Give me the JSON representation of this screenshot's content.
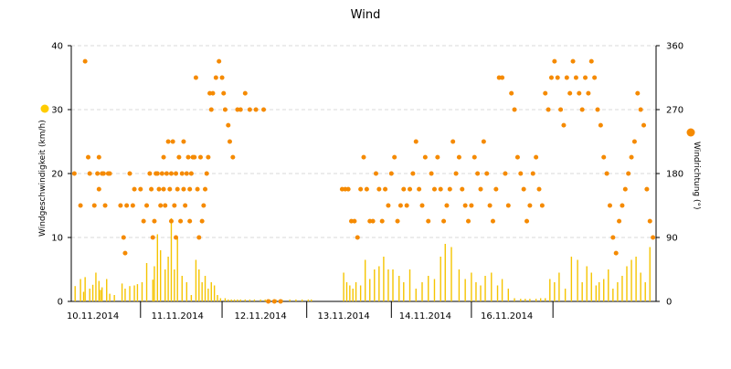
{
  "chart_data": {
    "type": "bar+scatter",
    "title": "Wind",
    "y_left_label": "Windgeschwindigkeit (km/h)",
    "y_right_label": "Windrichtung (°)",
    "y_left_ticks": [
      0,
      10,
      20,
      30,
      40
    ],
    "y_right_ticks": [
      0,
      90,
      180,
      270,
      360
    ],
    "y_left_range": [
      0,
      40
    ],
    "y_right_range": [
      0,
      360
    ],
    "x_tick_labels": [
      "10.11.2014",
      "11.11.2014",
      "12.11.2014",
      "13.11.2014",
      "14.11.2014",
      "16.11.2014"
    ],
    "grid": true,
    "colors": {
      "speed": "#f5c400",
      "direction": "#f58a00",
      "legend_speed": "#ffcc00",
      "legend_direction": "#f58a00",
      "grid": "#d9d9d9"
    },
    "series": [
      {
        "name": "Windgeschwindigkeit (km/h)",
        "kind": "bar",
        "x": [
          0.25,
          0.6,
          0.8,
          0.9,
          1.2,
          1.4,
          1.6,
          1.8,
          1.9,
          2.0,
          2.3,
          2.5,
          2.8,
          3.3,
          3.5,
          3.8,
          4.1,
          4.3,
          4.6,
          4.9,
          5.3,
          5.4,
          5.6,
          5.8,
          6.1,
          6.3,
          6.5,
          6.7,
          6.9,
          7.2,
          7.5,
          7.8,
          8.1,
          8.3,
          8.5,
          8.7,
          8.9,
          9.1,
          9.3,
          9.5,
          9.7,
          10.0,
          10.2,
          10.4,
          10.6,
          10.8,
          11.0,
          11.3,
          11.6,
          11.9,
          12.3,
          12.6,
          12.9,
          13.3,
          13.7,
          14.2,
          14.6,
          15.0,
          15.4,
          15.6,
          17.7,
          17.9,
          18.1,
          18.3,
          18.5,
          18.8,
          19.1,
          19.4,
          19.7,
          20.0,
          20.3,
          20.6,
          20.9,
          21.3,
          21.6,
          22.0,
          22.4,
          22.8,
          23.2,
          23.6,
          24.0,
          24.3,
          24.7,
          25.2,
          25.6,
          26.0,
          26.3,
          26.6,
          26.9,
          27.3,
          27.7,
          28.0,
          28.4,
          28.8,
          29.2,
          29.5,
          29.8,
          30.2,
          30.5,
          30.8,
          31.1,
          31.4,
          31.7,
          32.1,
          32.5,
          32.9,
          33.2,
          33.5,
          33.8,
          34.1,
          34.3,
          34.6,
          34.9,
          35.2,
          35.5,
          35.8,
          36.1,
          36.4,
          36.7,
          37.0,
          37.3,
          37.6
        ],
        "values": [
          2.4,
          3.5,
          1.5,
          3.8,
          2.0,
          2.6,
          4.5,
          3.2,
          1.8,
          2.2,
          3.5,
          1.2,
          1.0,
          2.8,
          2.0,
          2.4,
          2.5,
          2.7,
          3.0,
          6.0,
          3.4,
          5.5,
          10.5,
          8.0,
          5.0,
          7.0,
          13.0,
          5.0,
          10.0,
          4.0,
          3.0,
          1.0,
          6.5,
          5.0,
          3.0,
          4.0,
          2.0,
          3.0,
          2.5,
          1.0,
          0.5,
          0.5,
          0.3,
          0.3,
          0.3,
          0.3,
          0.3,
          0.3,
          0.3,
          0.3,
          0.3,
          0.3,
          0.3,
          0.3,
          0.3,
          0.3,
          0.3,
          0.3,
          0.3,
          0.3,
          4.5,
          3.0,
          2.5,
          2.0,
          3.0,
          2.5,
          6.5,
          3.5,
          5.0,
          5.5,
          7.0,
          5.0,
          5.0,
          4.0,
          3.0,
          5.0,
          2.0,
          3.0,
          4.0,
          3.5,
          7.0,
          9.0,
          8.5,
          5.0,
          3.5,
          4.5,
          3.0,
          2.5,
          4.0,
          4.5,
          2.5,
          3.5,
          2.0,
          0.5,
          0.4,
          0.4,
          0.4,
          0.4,
          0.5,
          0.5,
          3.5,
          3.0,
          4.5,
          2.0,
          7.0,
          6.5,
          3.0,
          5.5,
          4.5,
          2.5,
          3.0,
          3.5,
          5.0,
          2.0,
          3.0,
          4.0,
          5.5,
          6.5,
          7.0,
          4.5,
          3.0,
          8.5
        ]
      },
      {
        "name": "Windrichtung (°)",
        "kind": "scatter",
        "x": [
          0.2,
          0.6,
          0.9,
          1.1,
          1.2,
          1.5,
          1.7,
          1.8,
          1.8,
          2.0,
          2.1,
          2.2,
          2.4,
          2.5,
          3.2,
          3.4,
          3.5,
          3.6,
          3.8,
          4.0,
          4.1,
          4.5,
          4.7,
          4.9,
          5.1,
          5.2,
          5.3,
          5.4,
          5.5,
          5.6,
          5.7,
          5.8,
          5.9,
          6.0,
          6.0,
          6.1,
          6.2,
          6.3,
          6.4,
          6.5,
          6.5,
          6.6,
          6.7,
          6.8,
          6.8,
          6.9,
          7.0,
          7.1,
          7.2,
          7.3,
          7.3,
          7.4,
          7.5,
          7.6,
          7.7,
          7.7,
          7.8,
          7.9,
          8.0,
          8.1,
          8.2,
          8.3,
          8.4,
          8.5,
          8.6,
          8.7,
          8.8,
          8.9,
          9.0,
          9.1,
          9.2,
          9.4,
          9.6,
          9.8,
          9.9,
          10.0,
          10.2,
          10.3,
          10.5,
          10.8,
          11.0,
          11.3,
          11.6,
          12.0,
          12.5,
          12.8,
          13.2,
          13.6,
          17.6,
          17.8,
          18.0,
          18.2,
          18.4,
          18.6,
          18.8,
          19.0,
          19.2,
          19.4,
          19.6,
          19.8,
          20.0,
          20.2,
          20.4,
          20.6,
          20.8,
          21.0,
          21.2,
          21.4,
          21.6,
          21.8,
          22.0,
          22.2,
          22.4,
          22.6,
          22.8,
          23.0,
          23.2,
          23.4,
          23.6,
          23.8,
          24.0,
          24.2,
          24.4,
          24.6,
          24.8,
          25.0,
          25.2,
          25.4,
          25.6,
          25.8,
          26.0,
          26.2,
          26.4,
          26.6,
          26.8,
          27.0,
          27.2,
          27.4,
          27.6,
          27.8,
          28.0,
          28.2,
          28.4,
          28.6,
          28.8,
          29.0,
          29.2,
          29.4,
          29.6,
          29.8,
          30.0,
          30.2,
          30.4,
          30.6,
          30.8,
          31.0,
          31.2,
          31.4,
          31.6,
          31.8,
          32.0,
          32.2,
          32.4,
          32.6,
          32.8,
          33.0,
          33.2,
          33.4,
          33.6,
          33.8,
          34.0,
          34.2,
          34.4,
          34.6,
          34.8,
          35.0,
          35.2,
          35.4,
          35.6,
          35.8,
          36.0,
          36.2,
          36.4,
          36.6,
          36.8,
          37.0,
          37.2,
          37.4,
          37.6,
          37.8
        ],
        "values": [
          180,
          135,
          338,
          203,
          180,
          135,
          180,
          203,
          158,
          180,
          180,
          135,
          180,
          180,
          135,
          90,
          68,
          135,
          180,
          135,
          158,
          158,
          113,
          135,
          180,
          158,
          90,
          113,
          180,
          180,
          158,
          135,
          180,
          203,
          158,
          135,
          180,
          225,
          158,
          180,
          113,
          225,
          135,
          180,
          90,
          158,
          203,
          113,
          180,
          225,
          158,
          135,
          180,
          203,
          158,
          113,
          180,
          203,
          203,
          315,
          158,
          90,
          203,
          113,
          135,
          158,
          180,
          203,
          293,
          270,
          293,
          315,
          338,
          315,
          293,
          270,
          248,
          225,
          203,
          270,
          270,
          293,
          270,
          270,
          270,
          0,
          0,
          0,
          158,
          158,
          158,
          113,
          113,
          90,
          158,
          203,
          158,
          113,
          113,
          180,
          158,
          113,
          158,
          135,
          180,
          203,
          113,
          135,
          158,
          135,
          158,
          180,
          225,
          158,
          135,
          203,
          113,
          180,
          158,
          203,
          158,
          113,
          135,
          158,
          225,
          180,
          203,
          158,
          135,
          113,
          135,
          203,
          180,
          158,
          225,
          180,
          135,
          113,
          158,
          315,
          315,
          180,
          135,
          293,
          270,
          203,
          180,
          158,
          113,
          135,
          180,
          203,
          158,
          135,
          293,
          270,
          315,
          338,
          315,
          270,
          248,
          315,
          293,
          338,
          315,
          293,
          270,
          315,
          293,
          338,
          315,
          270,
          248,
          203,
          180,
          135,
          90,
          68,
          113,
          135,
          158,
          180,
          203,
          225,
          293,
          270,
          248,
          158,
          113,
          90
        ]
      }
    ]
  }
}
